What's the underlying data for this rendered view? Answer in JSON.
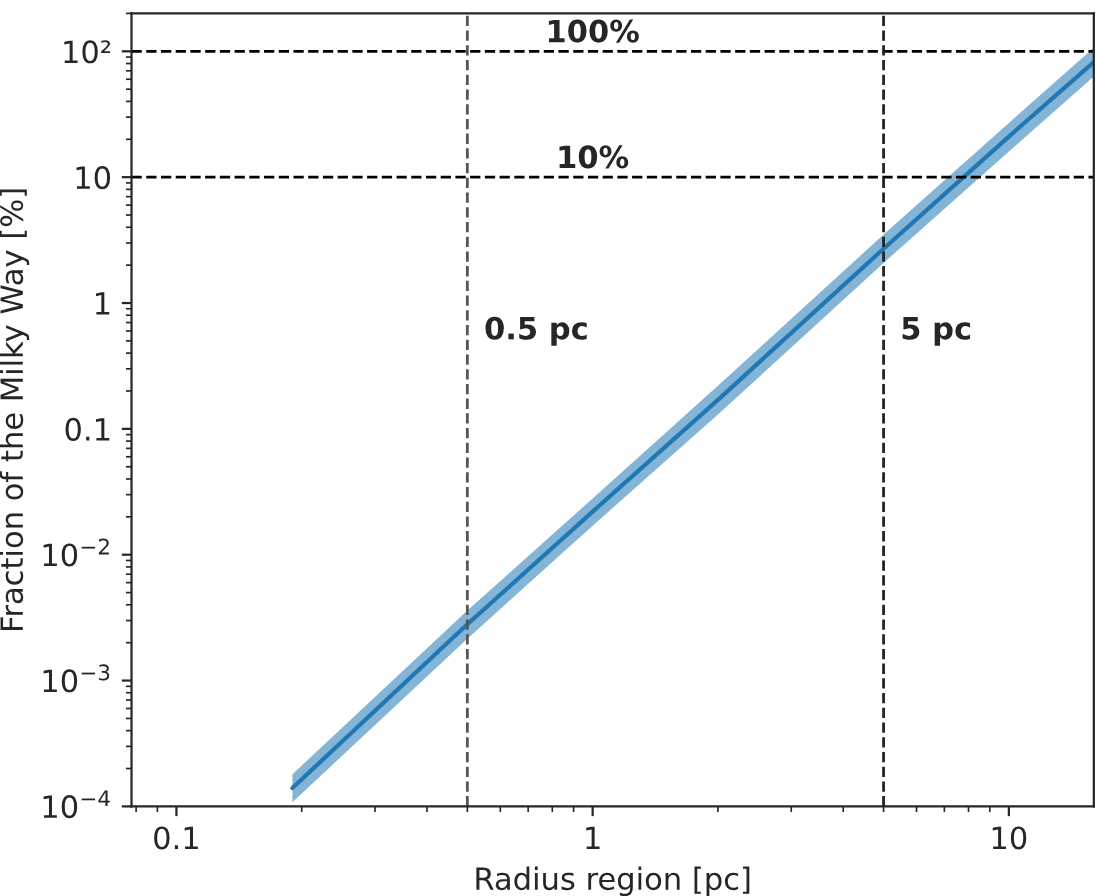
{
  "chart_data": {
    "type": "line",
    "xlabel": "Radius region [pc]",
    "ylabel": "Fraction of the Milky Way [%]",
    "log": "xy",
    "xlim": [
      0.078,
      16
    ],
    "ylim": [
      0.0001,
      200
    ],
    "xticks": [
      0.1,
      1,
      10
    ],
    "yticks": [
      {
        "value": 0.0001,
        "label": "10$^{−4}$"
      },
      {
        "value": 0.001,
        "label": "10$^{−3}$"
      },
      {
        "value": 0.01,
        "label": "10$^{−2}$"
      },
      0.1,
      1,
      10,
      {
        "value": 100,
        "label": "10²"
      }
    ],
    "series": [
      {
        "color": "#1f77b4",
        "x": [
          0.19,
          0.5,
          1,
          2,
          5,
          10,
          16
        ],
        "values": [
          0.00014,
          0.0028,
          0.022,
          0.17,
          2.7,
          21,
          82
        ],
        "lower": [
          0.000108,
          0.00215,
          0.017,
          0.13,
          2.08,
          16,
          63
        ],
        "upper": [
          0.00018,
          0.0036,
          0.028,
          0.22,
          3.5,
          27,
          107
        ]
      }
    ],
    "ref_lines": [
      {
        "axis": "y",
        "value": 100,
        "label": "100%",
        "color": "#000000",
        "line_style": "dashed"
      },
      {
        "axis": "y",
        "value": 10,
        "label": "10%",
        "color": "#000000",
        "line_style": "dashed"
      },
      {
        "axis": "x",
        "value": 0.5,
        "label": "0.5 pc",
        "color": "#555555",
        "line_style": "dashed"
      },
      {
        "axis": "x",
        "value": 5,
        "label": "5 pc",
        "color": "#222222",
        "line_style": "dashed"
      }
    ],
    "grid": false,
    "marker": "none",
    "line_style": "solid"
  }
}
